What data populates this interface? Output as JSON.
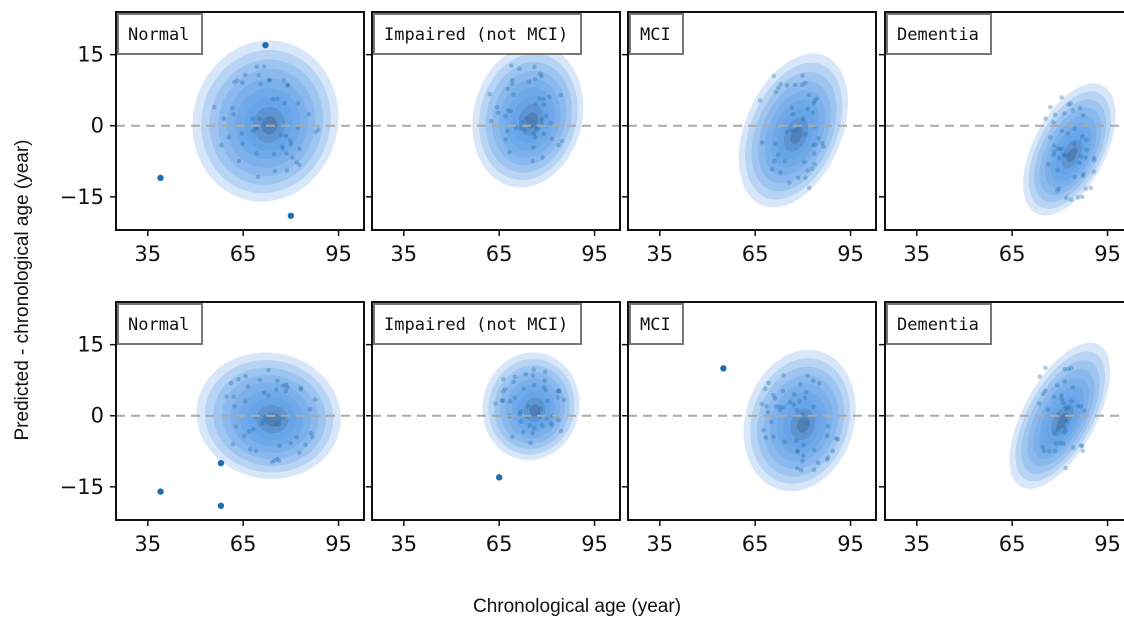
{
  "figure": {
    "xlabel": "Chronological age (year)",
    "ylabel": "Predicted - chronological age (year)"
  },
  "colors": {
    "density_fill": "#4a90e2",
    "point": "#1f6fb0",
    "reference_line": "#aaaaaa",
    "axis": "#111111"
  },
  "chart_data": [
    {
      "type": "scatter",
      "row": 1,
      "label": "Normal",
      "xlim": [
        25,
        103
      ],
      "ylim": [
        -22,
        24
      ],
      "xticks": [
        35,
        65,
        95
      ],
      "yticks": [
        15,
        0,
        -15
      ],
      "reference_line_y": 0,
      "density_center": [
        72,
        1
      ],
      "density_spread": [
        12,
        9
      ],
      "density_tilt": -0.45,
      "outliers": [
        {
          "x": 39,
          "y": -11
        },
        {
          "x": 80,
          "y": -19
        },
        {
          "x": 72,
          "y": 17
        }
      ]
    },
    {
      "type": "scatter",
      "row": 1,
      "label": "Impaired (not MCI)",
      "xlim": [
        25,
        103
      ],
      "ylim": [
        -22,
        24
      ],
      "xticks": [
        35,
        65,
        95
      ],
      "yticks": [
        15,
        0,
        -15
      ],
      "reference_line_y": 0,
      "density_center": [
        74,
        2
      ],
      "density_spread": [
        9,
        8
      ],
      "density_tilt": -0.45,
      "outliers": []
    },
    {
      "type": "scatter",
      "row": 1,
      "label": "MCI",
      "xlim": [
        25,
        103
      ],
      "ylim": [
        -22,
        24
      ],
      "xticks": [
        35,
        65,
        95
      ],
      "yticks": [
        15,
        0,
        -15
      ],
      "reference_line_y": 0,
      "density_center": [
        77,
        -1
      ],
      "density_spread": [
        8,
        9
      ],
      "density_tilt": -0.9,
      "outliers": []
    },
    {
      "type": "scatter",
      "row": 1,
      "label": "Dementia",
      "xlim": [
        25,
        103
      ],
      "ylim": [
        -22,
        24
      ],
      "xticks": [
        35,
        65,
        95
      ],
      "yticks": [
        15,
        0,
        -15
      ],
      "reference_line_y": 0,
      "density_center": [
        83,
        -5
      ],
      "density_spread": [
        6,
        8
      ],
      "density_tilt": -1.2,
      "outliers": []
    },
    {
      "type": "scatter",
      "row": 2,
      "label": "Normal",
      "xlim": [
        25,
        103
      ],
      "ylim": [
        -22,
        24
      ],
      "xticks": [
        35,
        65,
        95
      ],
      "yticks": [
        15,
        0,
        -15
      ],
      "reference_line_y": 0,
      "density_center": [
        73,
        0
      ],
      "density_spread": [
        12,
        7
      ],
      "density_tilt": -0.3,
      "outliers": [
        {
          "x": 39,
          "y": -16
        },
        {
          "x": 58,
          "y": -10
        },
        {
          "x": 58,
          "y": -19
        }
      ]
    },
    {
      "type": "scatter",
      "row": 2,
      "label": "Impaired (not MCI)",
      "xlim": [
        25,
        103
      ],
      "ylim": [
        -22,
        24
      ],
      "xticks": [
        35,
        65,
        95
      ],
      "yticks": [
        15,
        0,
        -15
      ],
      "reference_line_y": 0,
      "density_center": [
        75,
        2
      ],
      "density_spread": [
        8,
        6
      ],
      "density_tilt": -0.4,
      "outliers": [
        {
          "x": 65,
          "y": -13
        }
      ]
    },
    {
      "type": "scatter",
      "row": 2,
      "label": "MCI",
      "xlim": [
        25,
        103
      ],
      "ylim": [
        -22,
        24
      ],
      "xticks": [
        35,
        65,
        95
      ],
      "yticks": [
        15,
        0,
        -15
      ],
      "reference_line_y": 0,
      "density_center": [
        79,
        -1
      ],
      "density_spread": [
        9,
        8
      ],
      "density_tilt": -0.6,
      "outliers": [
        {
          "x": 55,
          "y": 10
        }
      ]
    },
    {
      "type": "scatter",
      "row": 2,
      "label": "Dementia",
      "xlim": [
        25,
        103
      ],
      "ylim": [
        -22,
        24
      ],
      "xticks": [
        35,
        65,
        95
      ],
      "yticks": [
        15,
        0,
        -15
      ],
      "reference_line_y": 0,
      "density_center": [
        80,
        0
      ],
      "density_spread": [
        6,
        9
      ],
      "density_tilt": -1.3,
      "outliers": []
    }
  ]
}
